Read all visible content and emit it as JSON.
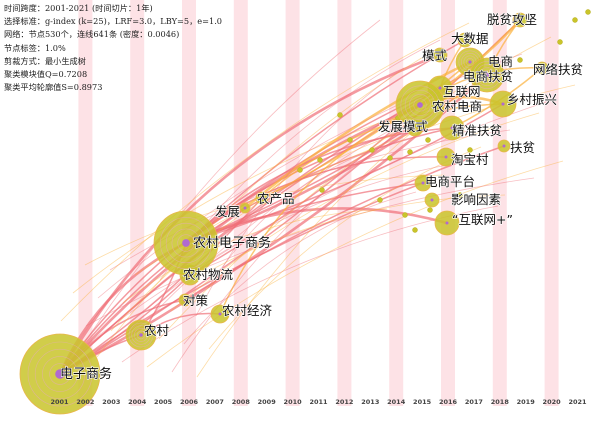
{
  "info": {
    "lines": [
      "时间跨度：2001-2021 (时间切片：1年)",
      "选择标准：g-index (k=25)，LRF=3.0，LBY=5，e=1.0",
      "网络：节点530个，连线641条 (密度：0.0046)",
      "节点标签：1.0%",
      "剪裁方式：最小生成树",
      "聚类模块值Q=0.7208",
      "聚类平均轮廓值S=0.8973"
    ]
  },
  "timeline": {
    "years": [
      "2001",
      "2002",
      "2003",
      "2004",
      "2005",
      "2006",
      "2007",
      "2008",
      "2009",
      "2010",
      "2011",
      "2012",
      "2013",
      "2014",
      "2015",
      "2016",
      "2017",
      "2018",
      "2019",
      "2020",
      "2021"
    ]
  },
  "colors": {
    "node_fill": "#c9c42a",
    "node_core": "#b06ad0",
    "stripe": "#fde2e6",
    "link_early": "#ef6f78",
    "link_late": "#fbb13a"
  },
  "nodes": [
    {
      "id": "dianzi",
      "label": "电子商务",
      "year": "2001",
      "size": "huge"
    },
    {
      "id": "nongcun",
      "label": "农村",
      "year": "2005",
      "size": "medium"
    },
    {
      "id": "duice",
      "label": "对策",
      "year": "2006",
      "size": "small"
    },
    {
      "id": "nongcunjingji",
      "label": "农村经济",
      "year": "2007",
      "size": "small"
    },
    {
      "id": "nongcunwuliu",
      "label": "农村物流",
      "year": "2006",
      "size": "medium"
    },
    {
      "id": "nongcundianzi",
      "label": "农村电子商务",
      "year": "2006",
      "size": "large"
    },
    {
      "id": "fazhan",
      "label": "发展",
      "year": "2008",
      "size": "small"
    },
    {
      "id": "nongchanpin",
      "label": "农产品",
      "year": "2009",
      "size": "small"
    },
    {
      "id": "fazhanmoshi",
      "label": "发展模式",
      "year": "2015",
      "size": "small"
    },
    {
      "id": "moshi",
      "label": "模式",
      "year": "2016",
      "size": "small"
    },
    {
      "id": "dashuju",
      "label": "大数据",
      "year": "2017",
      "size": "small"
    },
    {
      "id": "tuopin",
      "label": "脱贫攻坚",
      "year": "2019",
      "size": "small"
    },
    {
      "id": "dianshang",
      "label": "电商",
      "year": "2017",
      "size": "medium"
    },
    {
      "id": "hulianwang",
      "label": "互联网",
      "year": "2016",
      "size": "medium"
    },
    {
      "id": "dianshangfupin",
      "label": "电商扶贫",
      "year": "2017",
      "size": "medium"
    },
    {
      "id": "wangluofupin",
      "label": "网络扶贫",
      "year": "2019",
      "size": "small"
    },
    {
      "id": "nongcundianshang",
      "label": "农村电商",
      "year": "2016",
      "size": "large"
    },
    {
      "id": "xiangcun",
      "label": "乡村振兴",
      "year": "2018",
      "size": "medium"
    },
    {
      "id": "jingzhun",
      "label": "精准扶贫",
      "year": "2016",
      "size": "medium"
    },
    {
      "id": "fupin",
      "label": "扶贫",
      "year": "2018",
      "size": "small"
    },
    {
      "id": "taobao",
      "label": "淘宝村",
      "year": "2016",
      "size": "small"
    },
    {
      "id": "dianshangpingtai",
      "label": "电商平台",
      "year": "2016",
      "size": "small"
    },
    {
      "id": "yingxiang",
      "label": "影响因素",
      "year": "2016",
      "size": "small"
    },
    {
      "id": "hulianwangplus",
      "label": "“互联网+”",
      "year": "2016",
      "size": "medium"
    }
  ]
}
